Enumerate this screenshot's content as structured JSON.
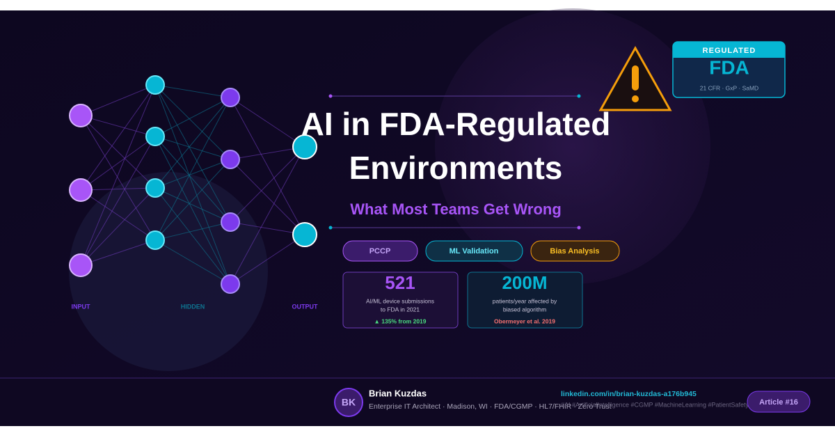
{
  "network": {
    "labels": [
      "INPUT",
      "HIDDEN",
      "OUTPUT"
    ]
  },
  "header": {
    "title_lines": [
      "AI in FDA-Regulated",
      "Environments"
    ],
    "subtitle": "What Most Teams Get Wrong"
  },
  "tags": [
    "PCCP",
    "ML Validation",
    "Bias Analysis"
  ],
  "stats": [
    {
      "value": "521",
      "caption_lines": [
        "AI/ML device submissions",
        "to FDA in 2021"
      ],
      "note": "▲ 135% from 2019"
    },
    {
      "value": "200M",
      "caption_lines": [
        "patients/year affected by",
        "biased algorithm"
      ],
      "note": "Obermeyer et al. 2019"
    }
  ],
  "badge": {
    "top": "REGULATED",
    "main": "FDA",
    "sub": "21 CFR · GxP · SaMD"
  },
  "footer": {
    "initials": "BK",
    "name": "Brian Kuzdas",
    "role": "Enterprise IT Architect · Madison, WI · FDA/CGMP · HL7/FHIR · Zero Trust",
    "link": "linkedin.com/in/brian-kuzdas-a176b945",
    "hashtags": "#AI #ArtificialIntelligence #CGMP #MachineLearning #PatientSafety",
    "article": "Article #16"
  }
}
